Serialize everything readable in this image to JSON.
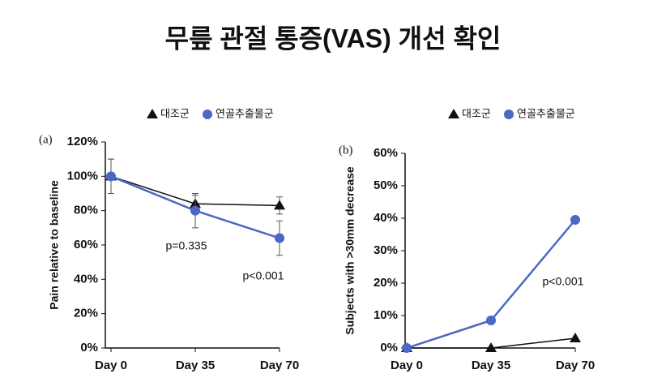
{
  "title": "무릎 관절 통증(VAS) 개선 확인",
  "chart_data": [
    {
      "type": "line",
      "panel_label": "(a)",
      "y_label": "Pain relative to baseline",
      "categories": [
        "Day 0",
        "Day 35",
        "Day 70"
      ],
      "ylim": [
        0,
        120
      ],
      "yticks": [
        {
          "value": 0,
          "label": "0%"
        },
        {
          "value": 20,
          "label": "20%"
        },
        {
          "value": 40,
          "label": "40%"
        },
        {
          "value": 60,
          "label": "60%"
        },
        {
          "value": 80,
          "label": "80%"
        },
        {
          "value": 100,
          "label": "100%"
        },
        {
          "value": 120,
          "label": "120%"
        }
      ],
      "legend": "top",
      "annotations": [
        "p=0.335",
        "p<0.001"
      ],
      "series": [
        {
          "name": "대조군",
          "color": "#111111",
          "marker": "triangle",
          "values": [
            100,
            84,
            83
          ],
          "errors": [
            10,
            5,
            5
          ]
        },
        {
          "name": "연골추출물군",
          "color": "#4a68c4",
          "marker": "circle",
          "values": [
            100,
            80,
            64
          ],
          "errors": [
            10,
            10,
            10
          ]
        }
      ]
    },
    {
      "type": "line",
      "panel_label": "(b)",
      "y_label": "Subjects with >30mm decrease",
      "categories": [
        "Day 0",
        "Day 35",
        "Day 70"
      ],
      "ylim": [
        0,
        60
      ],
      "yticks": [
        {
          "value": 0,
          "label": "0%"
        },
        {
          "value": 10,
          "label": "10%"
        },
        {
          "value": 20,
          "label": "20%"
        },
        {
          "value": 30,
          "label": "30%"
        },
        {
          "value": 40,
          "label": "40%"
        },
        {
          "value": 50,
          "label": "50%"
        },
        {
          "value": 60,
          "label": "60%"
        }
      ],
      "legend": "top",
      "annotations": [
        "p<0.001"
      ],
      "series": [
        {
          "name": "대조군",
          "color": "#111111",
          "marker": "triangle",
          "values": [
            0,
            0,
            3
          ]
        },
        {
          "name": "연골추출물군",
          "color": "#4a68c4",
          "marker": "circle",
          "values": [
            0,
            8.5,
            39.5
          ]
        }
      ]
    }
  ]
}
